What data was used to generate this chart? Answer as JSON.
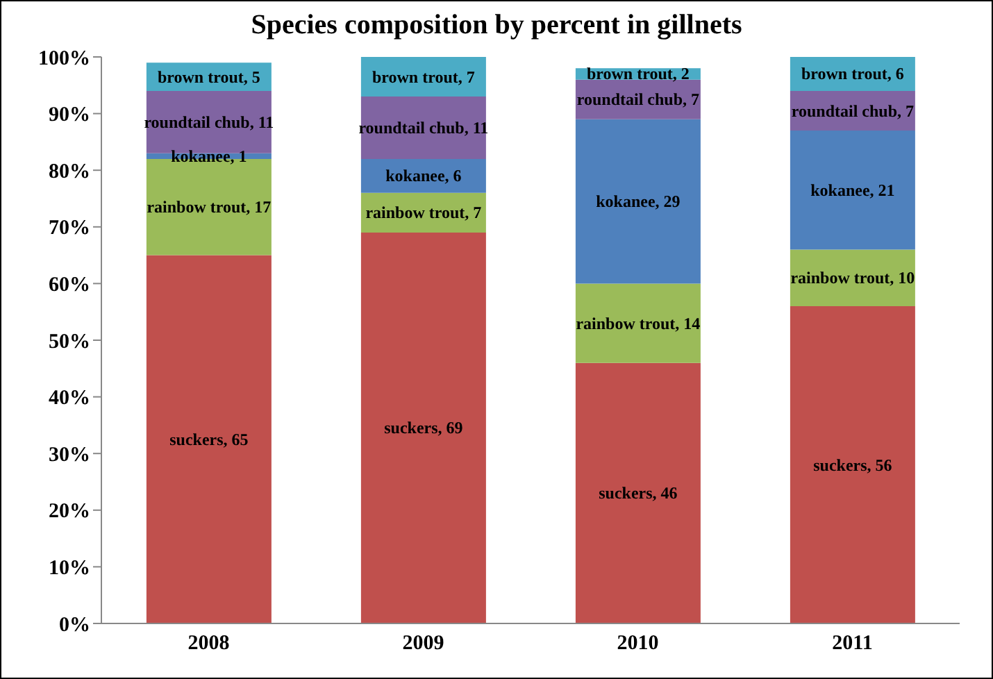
{
  "chart_data": {
    "type": "bar",
    "title": "Species composition by percent in gillnets",
    "stacked": true,
    "categories": [
      "2008",
      "2009",
      "2010",
      "2011"
    ],
    "series": [
      {
        "color": "#c0504d",
        "values": [
          65,
          69,
          46,
          56
        ],
        "value_labels": [
          "suckers, 65",
          "suckers, 69",
          "suckers, 46",
          "suckers, 56"
        ]
      },
      {
        "color": "#9bbb59",
        "values": [
          17,
          7,
          14,
          10
        ],
        "value_labels": [
          "rainbow trout, 17",
          "rainbow trout, 7",
          "rainbow trout, 14",
          "rainbow trout, 10"
        ]
      },
      {
        "color": "#4f81bd",
        "values": [
          1,
          6,
          29,
          21
        ],
        "value_labels": [
          "kokanee, 1",
          "kokanee, 6",
          "kokanee, 29",
          "kokanee, 21"
        ]
      },
      {
        "color": "#8064a2",
        "values": [
          11,
          11,
          7,
          7
        ],
        "value_labels": [
          "roundtail chub, 11",
          "roundtail chub, 11",
          "roundtail chub, 7",
          "roundtail chub, 7"
        ]
      },
      {
        "color": "#4bacc6",
        "values": [
          5,
          7,
          2,
          6
        ],
        "value_labels": [
          "brown trout, 5",
          "brown trout, 7",
          "brown trout, 2",
          "brown trout, 6"
        ]
      }
    ],
    "ylim": [
      0,
      100
    ],
    "yticks": [
      {
        "value": 0,
        "label": "0%"
      },
      {
        "value": 10,
        "label": "10%"
      },
      {
        "value": 20,
        "label": "20%"
      },
      {
        "value": 30,
        "label": "30%"
      },
      {
        "value": 40,
        "label": "40%"
      },
      {
        "value": 50,
        "label": "50%"
      },
      {
        "value": 60,
        "label": "60%"
      },
      {
        "value": 70,
        "label": "70%"
      },
      {
        "value": 80,
        "label": "80%"
      },
      {
        "value": 90,
        "label": "90%"
      },
      {
        "value": 100,
        "label": "100%"
      }
    ],
    "grid": false,
    "legend": false
  }
}
